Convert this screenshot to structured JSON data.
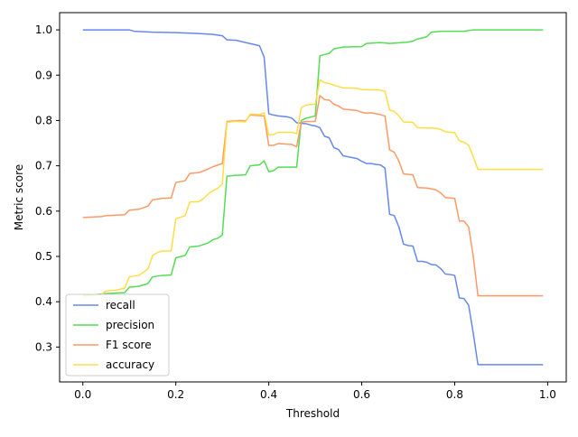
{
  "chart_data": {
    "type": "line",
    "xlabel": "Threshold",
    "ylabel": "Metric score",
    "xlim": [
      -0.05,
      1.04
    ],
    "ylim": [
      0.223,
      1.038
    ],
    "xticks": [
      {
        "value": 0.0,
        "label": "0.0"
      },
      {
        "value": 0.2,
        "label": "0.2"
      },
      {
        "value": 0.4,
        "label": "0.4"
      },
      {
        "value": 0.6,
        "label": "0.6"
      },
      {
        "value": 0.8,
        "label": "0.8"
      },
      {
        "value": 1.0,
        "label": "1.0"
      }
    ],
    "yticks": [
      {
        "value": 0.3,
        "label": "0.3"
      },
      {
        "value": 0.4,
        "label": "0.4"
      },
      {
        "value": 0.5,
        "label": "0.5"
      },
      {
        "value": 0.6,
        "label": "0.6"
      },
      {
        "value": 0.7,
        "label": "0.7"
      },
      {
        "value": 0.8,
        "label": "0.8"
      },
      {
        "value": 0.9,
        "label": "0.9"
      },
      {
        "value": 1.0,
        "label": "1.0"
      }
    ],
    "grid": false,
    "legend_position": "lower-left",
    "series": [
      {
        "name": "recall",
        "color": "#6688ee",
        "points": [
          [
            0.0,
            1.0
          ],
          [
            0.1,
            1.0
          ],
          [
            0.11,
            0.997
          ],
          [
            0.15,
            0.995
          ],
          [
            0.2,
            0.994
          ],
          [
            0.25,
            0.992
          ],
          [
            0.28,
            0.99
          ],
          [
            0.3,
            0.987
          ],
          [
            0.31,
            0.978
          ],
          [
            0.33,
            0.977
          ],
          [
            0.35,
            0.972
          ],
          [
            0.38,
            0.965
          ],
          [
            0.39,
            0.94
          ],
          [
            0.4,
            0.815
          ],
          [
            0.41,
            0.812
          ],
          [
            0.42,
            0.81
          ],
          [
            0.44,
            0.808
          ],
          [
            0.45,
            0.805
          ],
          [
            0.46,
            0.795
          ],
          [
            0.48,
            0.793
          ],
          [
            0.49,
            0.79
          ],
          [
            0.5,
            0.788
          ],
          [
            0.51,
            0.784
          ],
          [
            0.52,
            0.765
          ],
          [
            0.53,
            0.762
          ],
          [
            0.54,
            0.74
          ],
          [
            0.55,
            0.736
          ],
          [
            0.56,
            0.722
          ],
          [
            0.58,
            0.718
          ],
          [
            0.59,
            0.716
          ],
          [
            0.6,
            0.71
          ],
          [
            0.61,
            0.705
          ],
          [
            0.62,
            0.705
          ],
          [
            0.63,
            0.703
          ],
          [
            0.64,
            0.702
          ],
          [
            0.65,
            0.695
          ],
          [
            0.66,
            0.593
          ],
          [
            0.67,
            0.59
          ],
          [
            0.68,
            0.565
          ],
          [
            0.69,
            0.527
          ],
          [
            0.7,
            0.524
          ],
          [
            0.71,
            0.523
          ],
          [
            0.72,
            0.489
          ],
          [
            0.73,
            0.489
          ],
          [
            0.74,
            0.487
          ],
          [
            0.75,
            0.482
          ],
          [
            0.76,
            0.481
          ],
          [
            0.77,
            0.473
          ],
          [
            0.78,
            0.461
          ],
          [
            0.79,
            0.46
          ],
          [
            0.8,
            0.458
          ],
          [
            0.81,
            0.408
          ],
          [
            0.82,
            0.407
          ],
          [
            0.83,
            0.392
          ],
          [
            0.84,
            0.33
          ],
          [
            0.85,
            0.261
          ],
          [
            0.99,
            0.261
          ]
        ]
      },
      {
        "name": "precision",
        "color": "#55dd55",
        "points": [
          [
            0.0,
            0.415
          ],
          [
            0.02,
            0.415
          ],
          [
            0.05,
            0.418
          ],
          [
            0.09,
            0.42
          ],
          [
            0.1,
            0.432
          ],
          [
            0.12,
            0.434
          ],
          [
            0.14,
            0.44
          ],
          [
            0.15,
            0.455
          ],
          [
            0.17,
            0.458
          ],
          [
            0.19,
            0.459
          ],
          [
            0.2,
            0.497
          ],
          [
            0.22,
            0.502
          ],
          [
            0.23,
            0.521
          ],
          [
            0.25,
            0.523
          ],
          [
            0.27,
            0.53
          ],
          [
            0.28,
            0.537
          ],
          [
            0.29,
            0.54
          ],
          [
            0.3,
            0.547
          ],
          [
            0.31,
            0.677
          ],
          [
            0.33,
            0.679
          ],
          [
            0.35,
            0.68
          ],
          [
            0.36,
            0.7
          ],
          [
            0.38,
            0.702
          ],
          [
            0.39,
            0.711
          ],
          [
            0.4,
            0.687
          ],
          [
            0.41,
            0.689
          ],
          [
            0.42,
            0.697
          ],
          [
            0.46,
            0.697
          ],
          [
            0.47,
            0.8
          ],
          [
            0.48,
            0.805
          ],
          [
            0.5,
            0.81
          ],
          [
            0.51,
            0.943
          ],
          [
            0.53,
            0.948
          ],
          [
            0.54,
            0.958
          ],
          [
            0.56,
            0.962
          ],
          [
            0.6,
            0.963
          ],
          [
            0.61,
            0.97
          ],
          [
            0.64,
            0.972
          ],
          [
            0.66,
            0.97
          ],
          [
            0.7,
            0.973
          ],
          [
            0.71,
            0.975
          ],
          [
            0.72,
            0.98
          ],
          [
            0.73,
            0.982
          ],
          [
            0.74,
            0.985
          ],
          [
            0.75,
            0.995
          ],
          [
            0.77,
            0.997
          ],
          [
            0.82,
            0.997
          ],
          [
            0.84,
            1.0
          ],
          [
            0.99,
            1.0
          ]
        ]
      },
      {
        "name": "F1 score",
        "color": "#ff9966",
        "points": [
          [
            0.0,
            0.586
          ],
          [
            0.02,
            0.587
          ],
          [
            0.04,
            0.588
          ],
          [
            0.05,
            0.59
          ],
          [
            0.09,
            0.592
          ],
          [
            0.1,
            0.602
          ],
          [
            0.12,
            0.604
          ],
          [
            0.14,
            0.611
          ],
          [
            0.15,
            0.625
          ],
          [
            0.17,
            0.628
          ],
          [
            0.19,
            0.629
          ],
          [
            0.2,
            0.663
          ],
          [
            0.22,
            0.667
          ],
          [
            0.23,
            0.683
          ],
          [
            0.25,
            0.685
          ],
          [
            0.27,
            0.693
          ],
          [
            0.28,
            0.698
          ],
          [
            0.3,
            0.705
          ],
          [
            0.31,
            0.798
          ],
          [
            0.34,
            0.8
          ],
          [
            0.35,
            0.799
          ],
          [
            0.36,
            0.812
          ],
          [
            0.39,
            0.81
          ],
          [
            0.4,
            0.745
          ],
          [
            0.41,
            0.745
          ],
          [
            0.42,
            0.749
          ],
          [
            0.45,
            0.747
          ],
          [
            0.46,
            0.742
          ],
          [
            0.47,
            0.796
          ],
          [
            0.48,
            0.798
          ],
          [
            0.5,
            0.798
          ],
          [
            0.51,
            0.855
          ],
          [
            0.52,
            0.846
          ],
          [
            0.53,
            0.845
          ],
          [
            0.54,
            0.836
          ],
          [
            0.55,
            0.832
          ],
          [
            0.56,
            0.825
          ],
          [
            0.59,
            0.822
          ],
          [
            0.6,
            0.818
          ],
          [
            0.61,
            0.816
          ],
          [
            0.62,
            0.817
          ],
          [
            0.63,
            0.815
          ],
          [
            0.64,
            0.813
          ],
          [
            0.65,
            0.81
          ],
          [
            0.66,
            0.735
          ],
          [
            0.67,
            0.73
          ],
          [
            0.68,
            0.71
          ],
          [
            0.69,
            0.682
          ],
          [
            0.7,
            0.681
          ],
          [
            0.71,
            0.68
          ],
          [
            0.72,
            0.652
          ],
          [
            0.74,
            0.651
          ],
          [
            0.75,
            0.649
          ],
          [
            0.76,
            0.647
          ],
          [
            0.77,
            0.64
          ],
          [
            0.78,
            0.63
          ],
          [
            0.8,
            0.628
          ],
          [
            0.81,
            0.578
          ],
          [
            0.82,
            0.578
          ],
          [
            0.83,
            0.565
          ],
          [
            0.84,
            0.5
          ],
          [
            0.85,
            0.413
          ],
          [
            0.99,
            0.413
          ]
        ]
      },
      {
        "name": "accuracy",
        "color": "#ffdd44",
        "points": [
          [
            0.0,
            0.412
          ],
          [
            0.02,
            0.413
          ],
          [
            0.04,
            0.416
          ],
          [
            0.05,
            0.424
          ],
          [
            0.07,
            0.425
          ],
          [
            0.09,
            0.43
          ],
          [
            0.1,
            0.455
          ],
          [
            0.12,
            0.458
          ],
          [
            0.14,
            0.472
          ],
          [
            0.15,
            0.502
          ],
          [
            0.16,
            0.508
          ],
          [
            0.17,
            0.512
          ],
          [
            0.19,
            0.512
          ],
          [
            0.2,
            0.583
          ],
          [
            0.22,
            0.59
          ],
          [
            0.23,
            0.62
          ],
          [
            0.25,
            0.621
          ],
          [
            0.26,
            0.628
          ],
          [
            0.27,
            0.638
          ],
          [
            0.28,
            0.645
          ],
          [
            0.29,
            0.65
          ],
          [
            0.3,
            0.66
          ],
          [
            0.31,
            0.796
          ],
          [
            0.33,
            0.798
          ],
          [
            0.35,
            0.797
          ],
          [
            0.36,
            0.814
          ],
          [
            0.38,
            0.813
          ],
          [
            0.39,
            0.817
          ],
          [
            0.4,
            0.768
          ],
          [
            0.41,
            0.769
          ],
          [
            0.42,
            0.774
          ],
          [
            0.45,
            0.774
          ],
          [
            0.46,
            0.771
          ],
          [
            0.47,
            0.828
          ],
          [
            0.48,
            0.834
          ],
          [
            0.5,
            0.836
          ],
          [
            0.51,
            0.89
          ],
          [
            0.52,
            0.883
          ],
          [
            0.53,
            0.882
          ],
          [
            0.54,
            0.878
          ],
          [
            0.55,
            0.875
          ],
          [
            0.56,
            0.872
          ],
          [
            0.59,
            0.871
          ],
          [
            0.6,
            0.868
          ],
          [
            0.64,
            0.867
          ],
          [
            0.65,
            0.864
          ],
          [
            0.66,
            0.823
          ],
          [
            0.67,
            0.82
          ],
          [
            0.68,
            0.81
          ],
          [
            0.69,
            0.797
          ],
          [
            0.71,
            0.796
          ],
          [
            0.72,
            0.784
          ],
          [
            0.76,
            0.783
          ],
          [
            0.77,
            0.78
          ],
          [
            0.78,
            0.775
          ],
          [
            0.8,
            0.773
          ],
          [
            0.81,
            0.755
          ],
          [
            0.82,
            0.752
          ],
          [
            0.83,
            0.745
          ],
          [
            0.84,
            0.72
          ],
          [
            0.85,
            0.692
          ],
          [
            0.99,
            0.692
          ]
        ]
      }
    ]
  }
}
